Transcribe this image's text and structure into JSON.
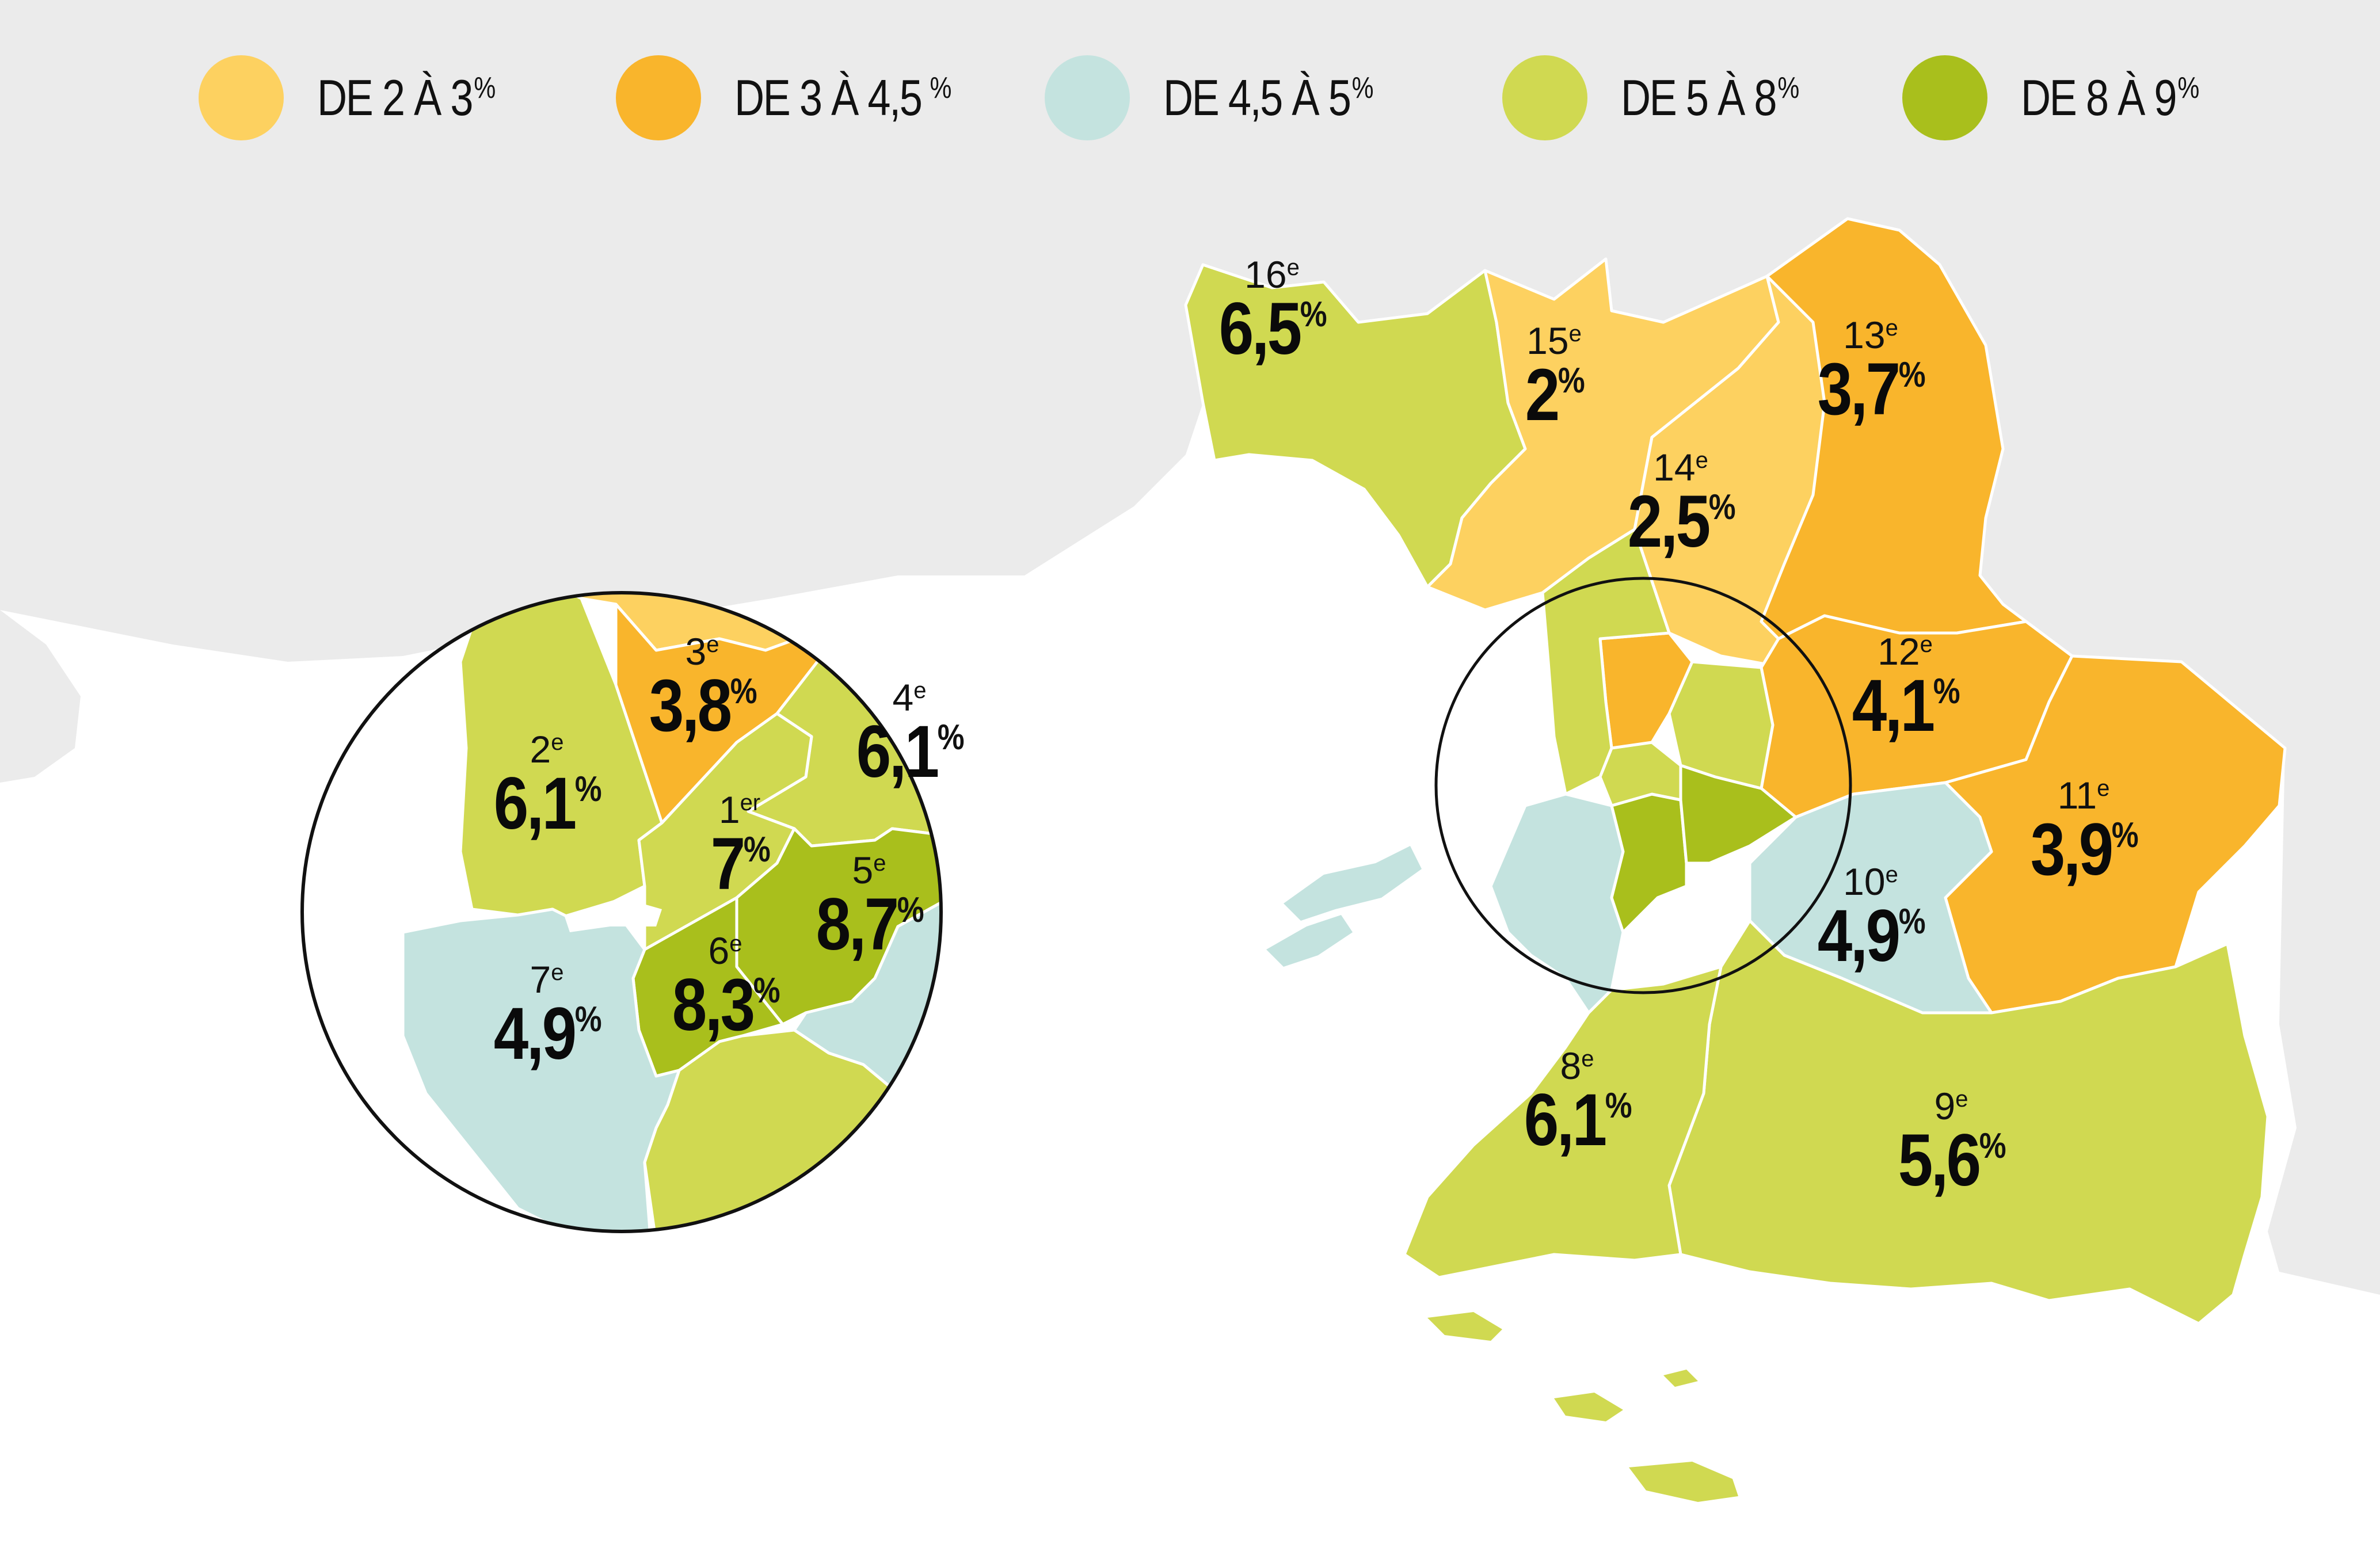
{
  "colors": {
    "background_land": "#ebebeb",
    "sea": "#ffffff",
    "band_2_3": "#fdd160",
    "band_3_45": "#f9b52c",
    "band_45_5": "#c4e3df",
    "band_5_8": "#d0d951",
    "band_8_9": "#a9bf1c",
    "borders": "#ffffff",
    "text": "#111111",
    "circle_stroke": "#111111"
  },
  "legend": [
    {
      "label": "DE 2 À 3",
      "unit": "%",
      "color_key": "band_2_3"
    },
    {
      "label": "DE 3 À 4,5",
      "unit": " %",
      "color_key": "band_3_45"
    },
    {
      "label": "DE 4,5 À 5",
      "unit": "%",
      "color_key": "band_45_5"
    },
    {
      "label": "DE 5 À 8",
      "unit": "%",
      "color_key": "band_5_8"
    },
    {
      "label": "DE 8 À 9",
      "unit": "%",
      "color_key": "band_8_9"
    }
  ],
  "arrondissements": [
    {
      "id": "1",
      "number": "1",
      "suffix": "er",
      "value": "7",
      "unit": "%",
      "color_key": "band_5_8"
    },
    {
      "id": "2",
      "number": "2",
      "suffix": "e",
      "value": "6,1",
      "unit": "%",
      "color_key": "band_5_8"
    },
    {
      "id": "3",
      "number": "3",
      "suffix": "e",
      "value": "3,8",
      "unit": "%",
      "color_key": "band_3_45"
    },
    {
      "id": "4",
      "number": "4",
      "suffix": "e",
      "value": "6,1",
      "unit": "%",
      "color_key": "band_5_8"
    },
    {
      "id": "5",
      "number": "5",
      "suffix": "e",
      "value": "8,7",
      "unit": "%",
      "color_key": "band_8_9"
    },
    {
      "id": "6",
      "number": "6",
      "suffix": "e",
      "value": "8,3",
      "unit": "%",
      "color_key": "band_8_9"
    },
    {
      "id": "7",
      "number": "7",
      "suffix": "e",
      "value": "4,9",
      "unit": "%",
      "color_key": "band_45_5"
    },
    {
      "id": "8",
      "number": "8",
      "suffix": "e",
      "value": "6,1",
      "unit": "%",
      "color_key": "band_5_8"
    },
    {
      "id": "9",
      "number": "9",
      "suffix": "e",
      "value": "5,6",
      "unit": "%",
      "color_key": "band_5_8"
    },
    {
      "id": "10",
      "number": "10",
      "suffix": "e",
      "value": "4,9",
      "unit": "%",
      "color_key": "band_45_5"
    },
    {
      "id": "11",
      "number": "11",
      "suffix": "e",
      "value": "3,9",
      "unit": "%",
      "color_key": "band_3_45"
    },
    {
      "id": "12",
      "number": "12",
      "suffix": "e",
      "value": "4,1",
      "unit": "%",
      "color_key": "band_3_45"
    },
    {
      "id": "13",
      "number": "13",
      "suffix": "e",
      "value": "3,7",
      "unit": "%",
      "color_key": "band_3_45"
    },
    {
      "id": "14",
      "number": "14",
      "suffix": "e",
      "value": "2,5",
      "unit": "%",
      "color_key": "band_2_3"
    },
    {
      "id": "15",
      "number": "15",
      "suffix": "e",
      "value": "2",
      "unit": "%",
      "color_key": "band_2_3"
    },
    {
      "id": "16",
      "number": "16",
      "suffix": "e",
      "value": "6,5",
      "unit": "%",
      "color_key": "band_5_8"
    }
  ]
}
